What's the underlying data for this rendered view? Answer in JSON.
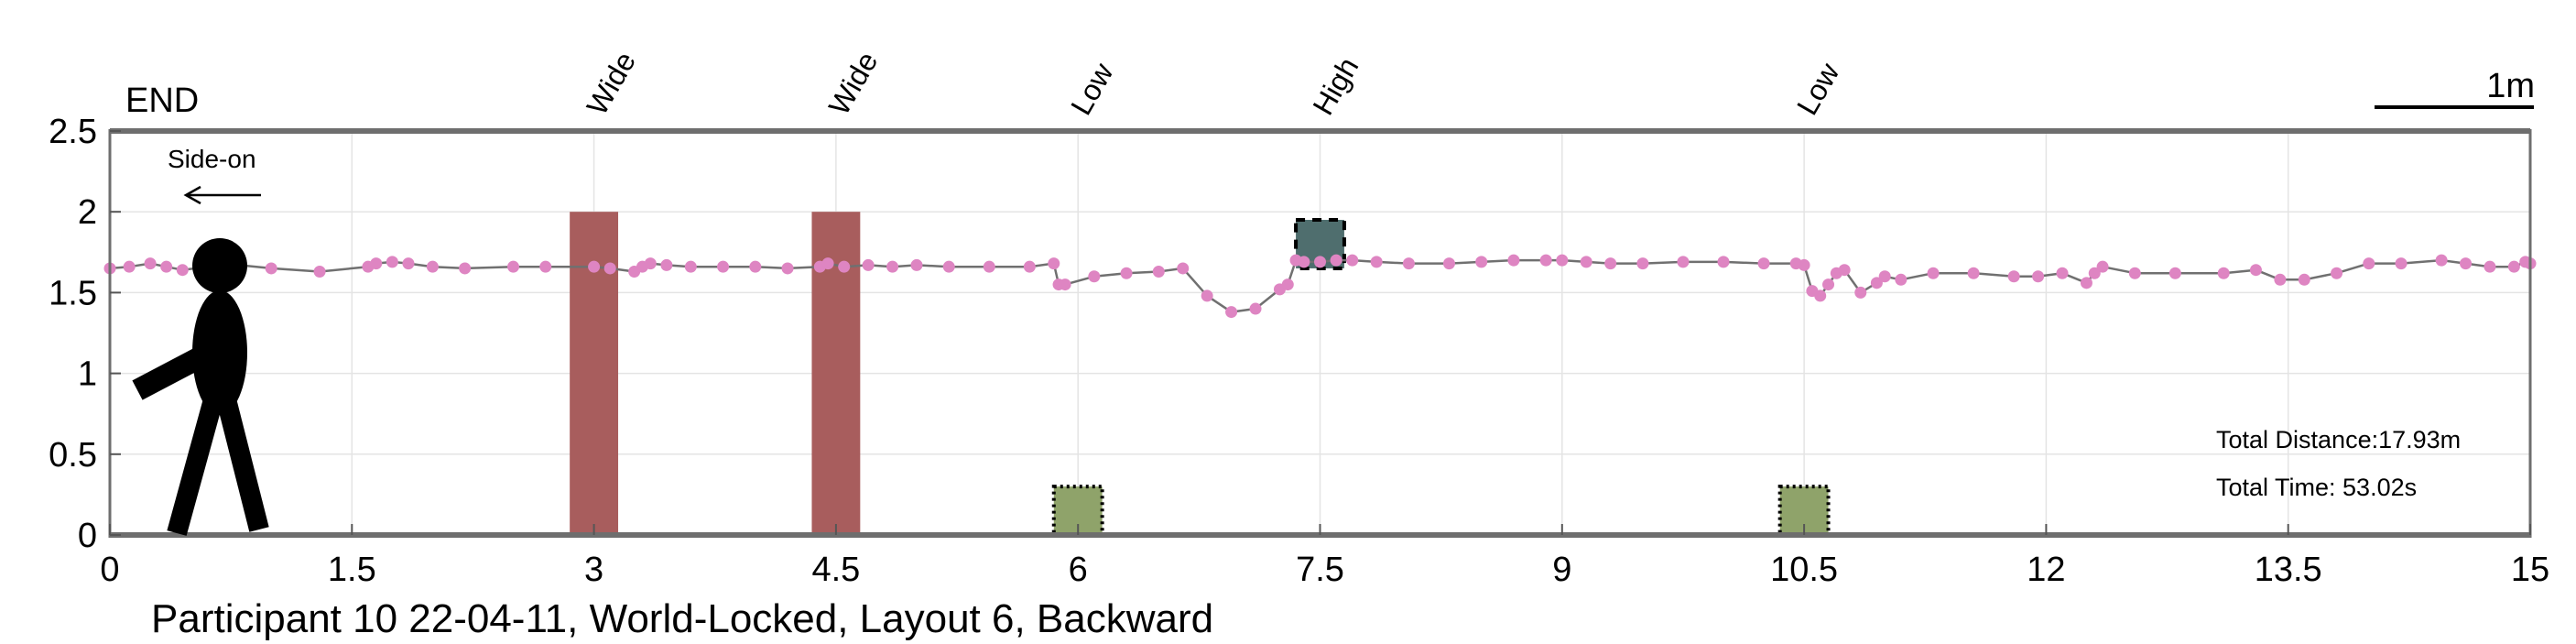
{
  "chart_data": {
    "type": "scatter",
    "title": "",
    "caption": "Participant 10 22-04-11, World-Locked, Layout 6, Backward",
    "xlabel": "",
    "ylabel": "",
    "xlim": [
      0,
      15
    ],
    "ylim": [
      0,
      2.5
    ],
    "x_ticks": [
      "0",
      "1.5",
      "3",
      "4.5",
      "6",
      "7.5",
      "9",
      "10.5",
      "12",
      "13.5",
      "15"
    ],
    "y_ticks": [
      "0",
      "0.5",
      "1",
      "1.5",
      "2",
      "2.5"
    ],
    "grid": true,
    "end_label": "END",
    "direction_label": "Side-on",
    "scale_label": "1m",
    "stats": {
      "distance": "Total Distance:17.93m",
      "time": "Total Time: 53.02s"
    },
    "obstacles": [
      {
        "label": "Wide",
        "kind": "wide",
        "x": 3.0,
        "y0": 0,
        "y1": 2.0,
        "color": "#a85d5d"
      },
      {
        "label": "Wide",
        "kind": "wide",
        "x": 4.5,
        "y0": 0,
        "y1": 2.0,
        "color": "#a85d5d"
      },
      {
        "label": "Low",
        "kind": "low",
        "x": 6.0,
        "y0": 0,
        "y1": 0.3,
        "color": "#8fa36a"
      },
      {
        "label": "High",
        "kind": "high",
        "x": 7.5,
        "y0": 1.65,
        "y1": 1.95,
        "color": "#4f6e6e"
      },
      {
        "label": "Low",
        "kind": "low",
        "x": 10.5,
        "y0": 0,
        "y1": 0.3,
        "color": "#8fa36a"
      }
    ],
    "series": [
      {
        "x": [
          0.0,
          0.12,
          0.25,
          0.35,
          0.45,
          0.6,
          0.8,
          1.0,
          1.3,
          1.6,
          1.65,
          1.75,
          1.85,
          2.0,
          2.2,
          2.5,
          2.7,
          3.0,
          3.1,
          3.25,
          3.3,
          3.35,
          3.45,
          3.6,
          3.8,
          4.0,
          4.2,
          4.4,
          4.45,
          4.55,
          4.7,
          4.85,
          5.0,
          5.2,
          5.45,
          5.7,
          5.85,
          5.88,
          5.92,
          6.1,
          6.3,
          6.5,
          6.65,
          6.8,
          6.95,
          7.1,
          7.25,
          7.3,
          7.35,
          7.4,
          7.5,
          7.6,
          7.7,
          7.85,
          8.05,
          8.3,
          8.5,
          8.7,
          8.9,
          9.0,
          9.15,
          9.3,
          9.5,
          9.75,
          10.0,
          10.25,
          10.45,
          10.5,
          10.55,
          10.6,
          10.65,
          10.7,
          10.75,
          10.85,
          10.95,
          11.0,
          11.1,
          11.3,
          11.55,
          11.8,
          11.95,
          12.1,
          12.25,
          12.3,
          12.35,
          12.55,
          12.8,
          13.1,
          13.3,
          13.45,
          13.6,
          13.8,
          14.0,
          14.2,
          14.45,
          14.6,
          14.75,
          14.9,
          14.97,
          15.0
        ],
        "values": [
          1.65,
          1.66,
          1.68,
          1.66,
          1.64,
          1.66,
          1.67,
          1.65,
          1.63,
          1.66,
          1.68,
          1.69,
          1.68,
          1.66,
          1.65,
          1.66,
          1.66,
          1.66,
          1.65,
          1.63,
          1.66,
          1.68,
          1.67,
          1.66,
          1.66,
          1.66,
          1.65,
          1.66,
          1.68,
          1.66,
          1.67,
          1.66,
          1.67,
          1.66,
          1.66,
          1.66,
          1.68,
          1.55,
          1.55,
          1.6,
          1.62,
          1.63,
          1.65,
          1.48,
          1.38,
          1.4,
          1.52,
          1.55,
          1.7,
          1.69,
          1.69,
          1.7,
          1.7,
          1.69,
          1.68,
          1.68,
          1.69,
          1.7,
          1.7,
          1.7,
          1.69,
          1.68,
          1.68,
          1.69,
          1.69,
          1.68,
          1.68,
          1.67,
          1.51,
          1.48,
          1.55,
          1.62,
          1.64,
          1.5,
          1.56,
          1.6,
          1.58,
          1.62,
          1.62,
          1.6,
          1.6,
          1.62,
          1.56,
          1.62,
          1.66,
          1.62,
          1.62,
          1.62,
          1.64,
          1.58,
          1.58,
          1.62,
          1.68,
          1.68,
          1.7,
          1.68,
          1.66,
          1.66,
          1.69,
          1.68
        ],
        "color": "#de85c2",
        "line_color": "#707070"
      }
    ],
    "colors": {
      "axis": "#6e6e6e",
      "grid": "#e4e4e4",
      "trace_line": "#707070",
      "trace_point": "#de85c2"
    }
  }
}
